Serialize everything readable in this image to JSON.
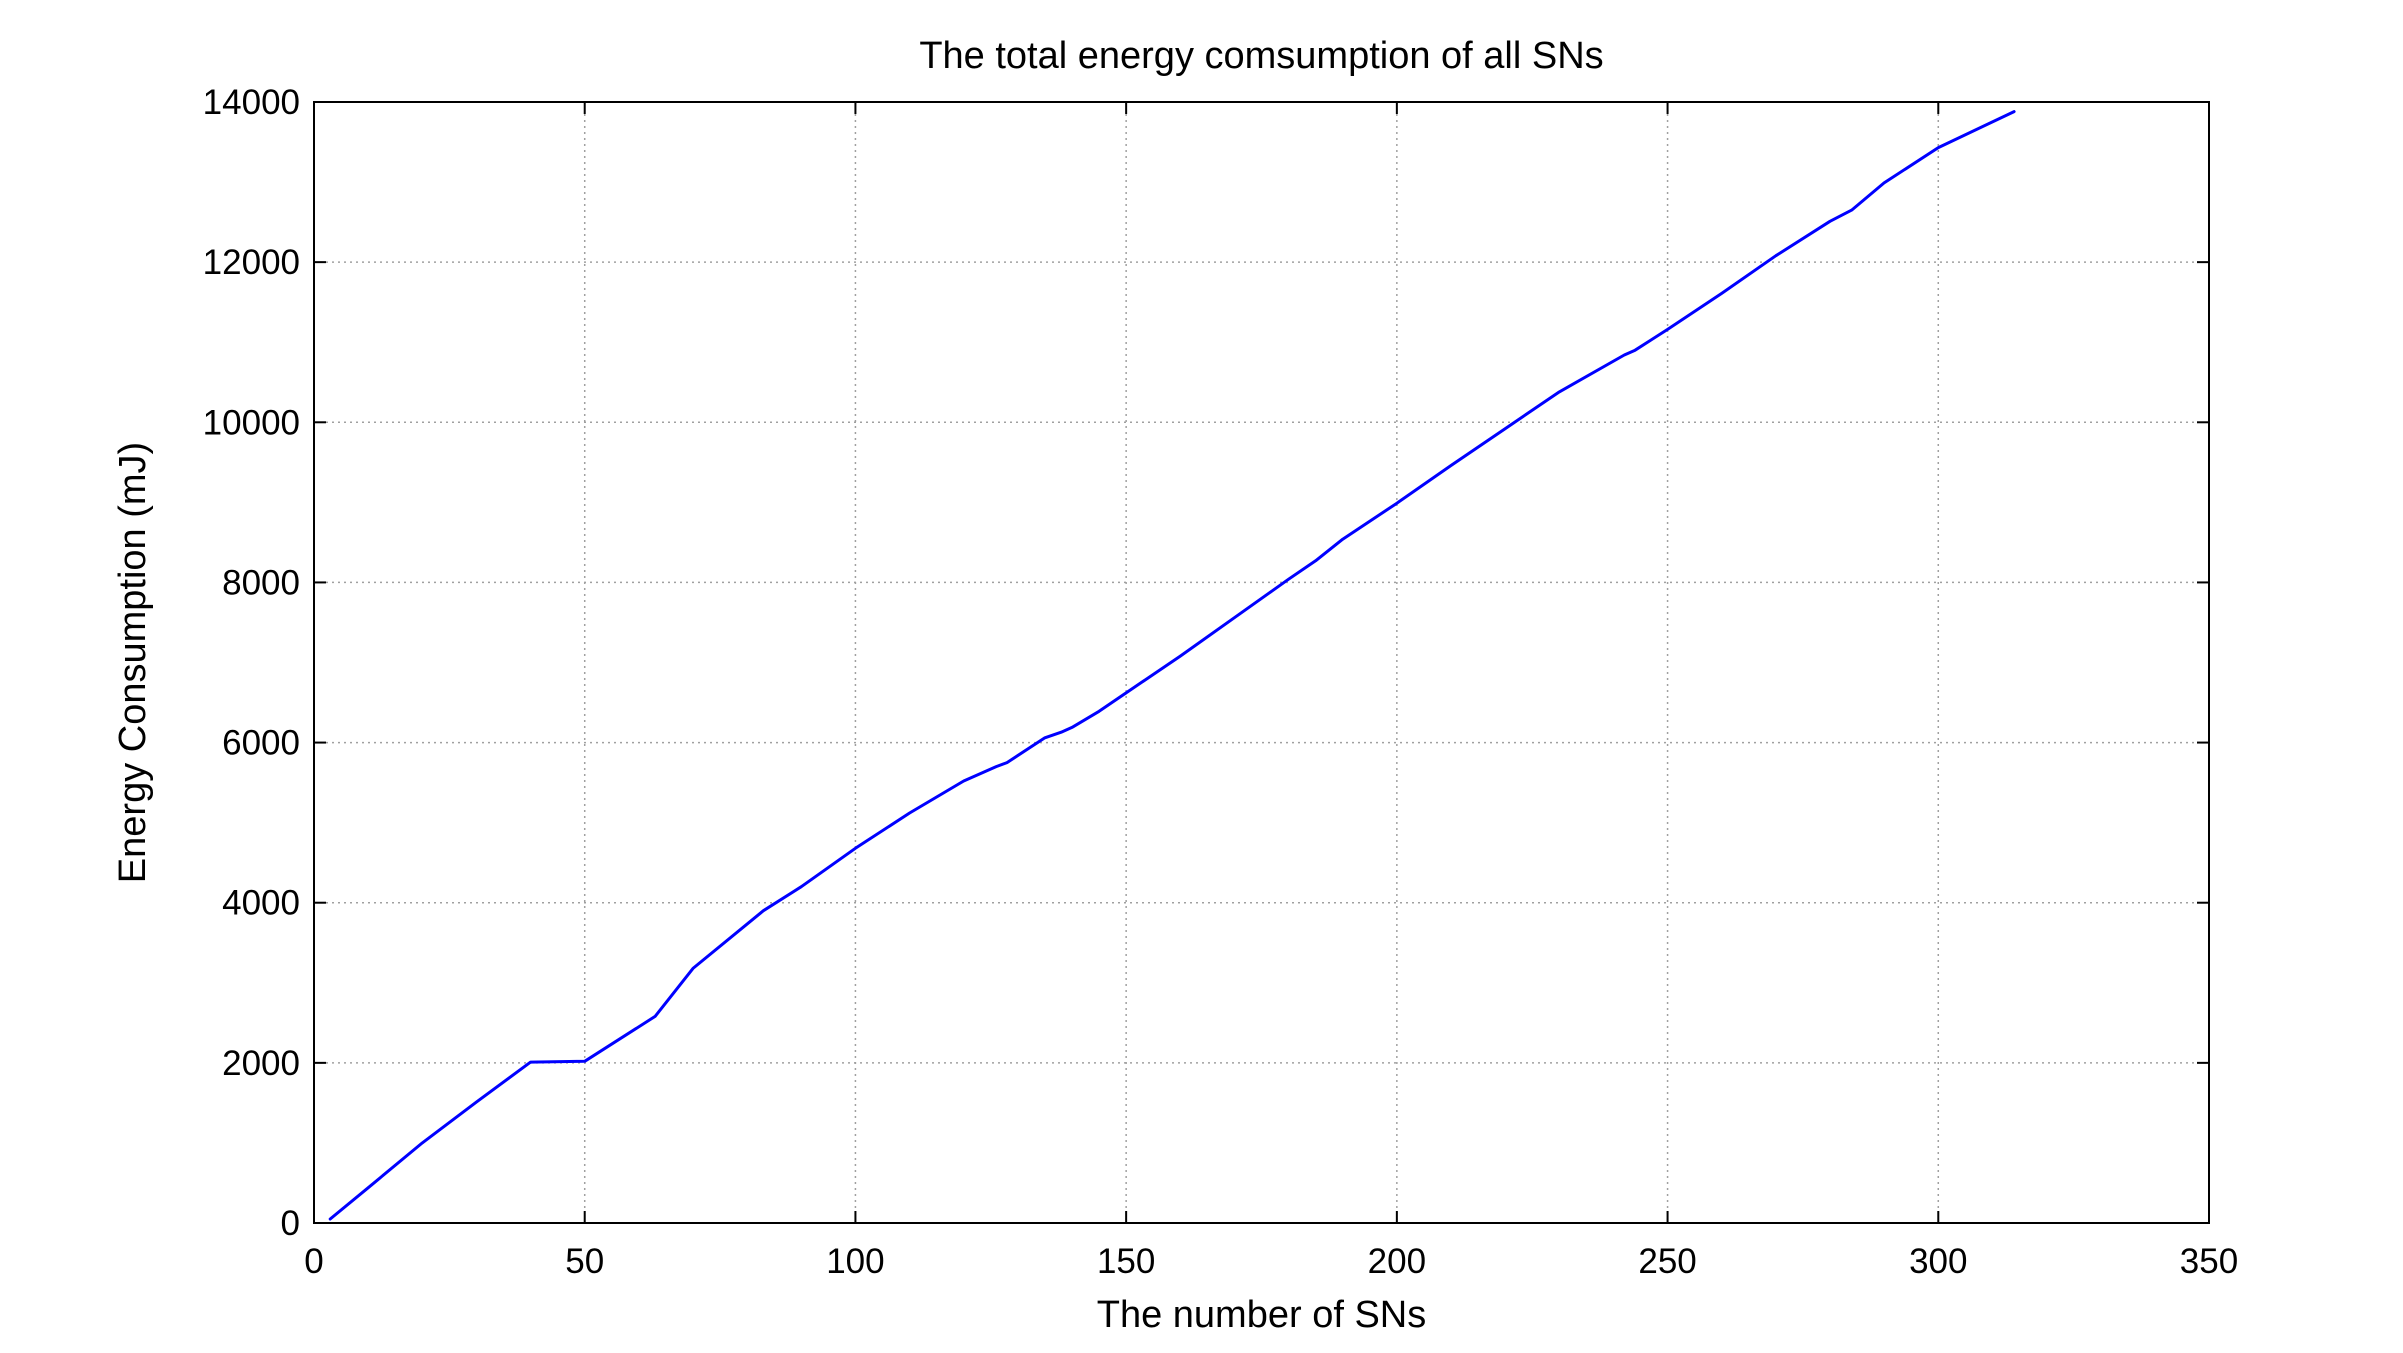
{
  "chart_data": {
    "type": "line",
    "title": "The total energy comsumption of all SNs",
    "xlabel": "The number of SNs",
    "ylabel": "Energy Consumption (mJ)",
    "xlim": [
      0,
      350
    ],
    "ylim": [
      0,
      14000
    ],
    "xticks": [
      0,
      50,
      100,
      150,
      200,
      250,
      300,
      350
    ],
    "yticks": [
      0,
      2000,
      4000,
      6000,
      8000,
      10000,
      12000,
      14000
    ],
    "xtick_labels": [
      "0",
      "50",
      "100",
      "150",
      "200",
      "250",
      "300",
      "350"
    ],
    "ytick_labels": [
      "0",
      "2000",
      "4000",
      "6000",
      "8000",
      "10000",
      "12000",
      "14000"
    ],
    "grid": true,
    "grid_style": "dotted",
    "series": [
      {
        "color": "#0000ff",
        "x": [
          3,
          10,
          20,
          30,
          40,
          50,
          63,
          70,
          83,
          90,
          100,
          110,
          120,
          126,
          128,
          135,
          138,
          140,
          145,
          150,
          160,
          170,
          180,
          185,
          190,
          200,
          210,
          220,
          230,
          242,
          244,
          250,
          260,
          270,
          280,
          284,
          290,
          300,
          314
        ],
        "y": [
          50,
          440,
          1000,
          1510,
          2010,
          2020,
          2580,
          3180,
          3900,
          4200,
          4680,
          5120,
          5520,
          5700,
          5750,
          6060,
          6130,
          6190,
          6390,
          6620,
          7080,
          7560,
          8040,
          8270,
          8540,
          8990,
          9460,
          9920,
          10380,
          10840,
          10900,
          11160,
          11610,
          12080,
          12510,
          12650,
          12990,
          13430,
          13880
        ]
      }
    ]
  }
}
